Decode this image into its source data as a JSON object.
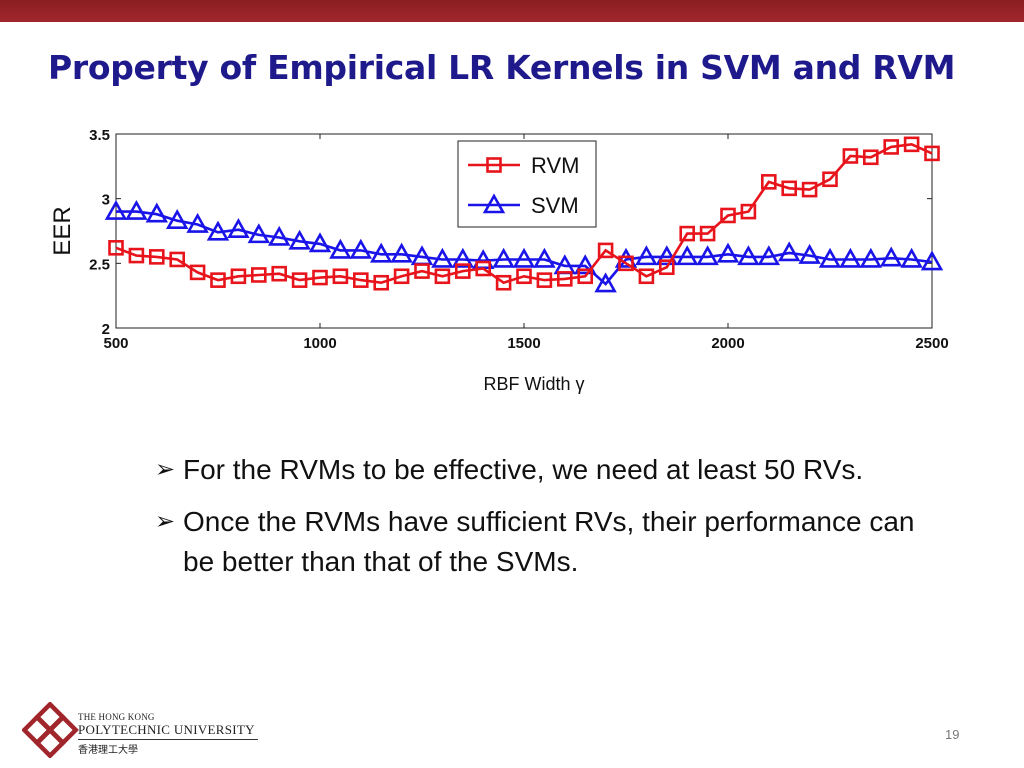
{
  "slide": {
    "title": "Property of Empirical LR Kernels in SVM and RVM",
    "bullets": [
      "For the RVMs to be effective, we need at least 50 RVs.",
      "Once the RVMs have sufficient RVs, their performance can be better than that of the SVMs."
    ],
    "bullet_icon": "arrow-bullet-icon",
    "page_number": "19",
    "accent_color": "#a0262b",
    "title_color": "#1f1a8c"
  },
  "logo": {
    "line1": "THE HONG KONG",
    "line2": "POLYTECHNIC UNIVERSITY",
    "line3": "香港理工大學",
    "icon": "polyu-logo-icon",
    "color": "#a0262b"
  },
  "chart_data": {
    "type": "line",
    "xlabel": "RBF Width γ",
    "ylabel": "EER",
    "xlim": [
      500,
      2500
    ],
    "ylim": [
      2,
      3.5
    ],
    "xticks": [
      500,
      1000,
      1500,
      2000,
      2500
    ],
    "yticks": [
      2,
      2.5,
      3,
      3.5
    ],
    "ytick_labels": [
      "2",
      "2.5",
      "3",
      "3.5"
    ],
    "grid": false,
    "legend_position": "top-center",
    "x": [
      500,
      550,
      600,
      650,
      700,
      750,
      800,
      850,
      900,
      950,
      1000,
      1050,
      1100,
      1150,
      1200,
      1250,
      1300,
      1350,
      1400,
      1450,
      1500,
      1550,
      1600,
      1650,
      1700,
      1750,
      1800,
      1850,
      1900,
      1950,
      2000,
      2050,
      2100,
      2150,
      2200,
      2250,
      2300,
      2350,
      2400,
      2450,
      2500
    ],
    "series": [
      {
        "name": "RVM",
        "color": "#e8141c",
        "marker": "square",
        "values": [
          2.62,
          2.56,
          2.55,
          2.53,
          2.43,
          2.37,
          2.4,
          2.41,
          2.42,
          2.37,
          2.39,
          2.4,
          2.37,
          2.35,
          2.4,
          2.44,
          2.4,
          2.44,
          2.46,
          2.35,
          2.4,
          2.37,
          2.38,
          2.4,
          2.6,
          2.5,
          2.4,
          2.47,
          2.73,
          2.73,
          2.87,
          2.9,
          3.13,
          3.08,
          3.07,
          3.15,
          3.33,
          3.32,
          3.4,
          3.42,
          3.35
        ]
      },
      {
        "name": "SVM",
        "color": "#1a14e8",
        "marker": "triangle",
        "values": [
          2.9,
          2.9,
          2.88,
          2.83,
          2.8,
          2.74,
          2.76,
          2.72,
          2.7,
          2.67,
          2.65,
          2.6,
          2.6,
          2.57,
          2.57,
          2.55,
          2.53,
          2.53,
          2.52,
          2.53,
          2.53,
          2.53,
          2.48,
          2.48,
          2.34,
          2.53,
          2.55,
          2.55,
          2.55,
          2.55,
          2.57,
          2.55,
          2.55,
          2.58,
          2.56,
          2.53,
          2.53,
          2.53,
          2.54,
          2.53,
          2.51
        ]
      }
    ]
  }
}
